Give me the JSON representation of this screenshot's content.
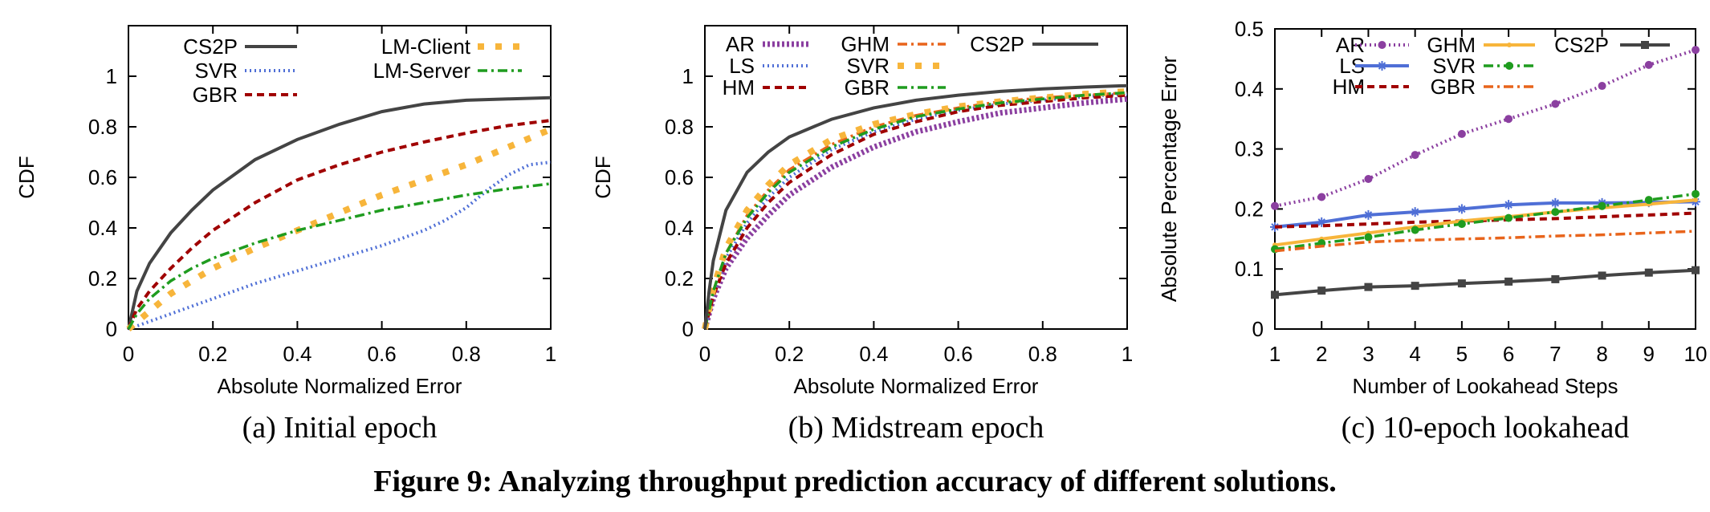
{
  "figure_caption": "Figure 9: Analyzing throughput prediction accuracy of different solutions.",
  "chart_data": [
    {
      "id": "a",
      "type": "line",
      "caption": "(a) Initial epoch",
      "xlabel": "Absolute Normalized Error",
      "ylabel": "CDF",
      "xlim": [
        0,
        1
      ],
      "ylim": [
        0,
        1.2
      ],
      "xticks": [
        "0",
        "0.2",
        "0.4",
        "0.6",
        "0.8",
        "1"
      ],
      "yticks": [
        "0",
        "0.2",
        "0.4",
        "0.6",
        "0.8",
        "1"
      ],
      "legend": {
        "placement": "top",
        "columns": 2
      },
      "series": [
        {
          "name": "CS2P",
          "color": "#444444",
          "style": "solid",
          "x": [
            0,
            0.02,
            0.05,
            0.1,
            0.15,
            0.2,
            0.3,
            0.4,
            0.5,
            0.6,
            0.7,
            0.8,
            0.9,
            1.0
          ],
          "y": [
            0,
            0.15,
            0.26,
            0.38,
            0.47,
            0.55,
            0.67,
            0.75,
            0.81,
            0.86,
            0.89,
            0.905,
            0.91,
            0.915
          ]
        },
        {
          "name": "SVR",
          "color": "#4f6fd6",
          "style": "dotted",
          "x": [
            0,
            0.1,
            0.2,
            0.3,
            0.4,
            0.5,
            0.6,
            0.7,
            0.75,
            0.8,
            0.85,
            0.9,
            0.95,
            1.0
          ],
          "y": [
            0,
            0.06,
            0.12,
            0.18,
            0.23,
            0.28,
            0.33,
            0.39,
            0.43,
            0.48,
            0.55,
            0.61,
            0.65,
            0.66
          ]
        },
        {
          "name": "GBR",
          "color": "#a00000",
          "style": "dashed",
          "x": [
            0,
            0.02,
            0.05,
            0.1,
            0.15,
            0.2,
            0.3,
            0.4,
            0.5,
            0.6,
            0.7,
            0.8,
            0.9,
            1.0
          ],
          "y": [
            0,
            0.08,
            0.15,
            0.24,
            0.32,
            0.39,
            0.5,
            0.59,
            0.65,
            0.7,
            0.74,
            0.775,
            0.805,
            0.825
          ]
        },
        {
          "name": "LM-Client",
          "color": "#f7b53b",
          "style": "thickdash",
          "x": [
            0,
            0.05,
            0.1,
            0.15,
            0.2,
            0.3,
            0.4,
            0.5,
            0.6,
            0.7,
            0.8,
            0.9,
            1.0
          ],
          "y": [
            0,
            0.07,
            0.14,
            0.19,
            0.24,
            0.32,
            0.39,
            0.46,
            0.53,
            0.59,
            0.65,
            0.72,
            0.79
          ]
        },
        {
          "name": "LM-Server",
          "color": "#1f9c1f",
          "style": "dashdot",
          "x": [
            0,
            0.02,
            0.05,
            0.1,
            0.15,
            0.2,
            0.3,
            0.4,
            0.5,
            0.6,
            0.7,
            0.8,
            0.9,
            1.0
          ],
          "y": [
            0,
            0.06,
            0.12,
            0.19,
            0.24,
            0.28,
            0.34,
            0.39,
            0.43,
            0.47,
            0.5,
            0.53,
            0.555,
            0.575
          ]
        }
      ]
    },
    {
      "id": "b",
      "type": "line",
      "caption": "(b) Midstream epoch",
      "xlabel": "Absolute Normalized Error",
      "ylabel": "CDF",
      "xlim": [
        0,
        1
      ],
      "ylim": [
        0,
        1.2
      ],
      "xticks": [
        "0",
        "0.2",
        "0.4",
        "0.6",
        "0.8",
        "1"
      ],
      "yticks": [
        "0",
        "0.2",
        "0.4",
        "0.6",
        "0.8",
        "1"
      ],
      "legend": {
        "placement": "top",
        "columns": 3
      },
      "series": [
        {
          "name": "AR",
          "color": "#8b3fa0",
          "style": "thickdot",
          "x": [
            0,
            0.02,
            0.05,
            0.1,
            0.15,
            0.2,
            0.3,
            0.4,
            0.5,
            0.6,
            0.7,
            0.8,
            0.9,
            1.0
          ],
          "y": [
            0,
            0.12,
            0.24,
            0.36,
            0.45,
            0.53,
            0.64,
            0.72,
            0.78,
            0.82,
            0.855,
            0.875,
            0.895,
            0.91
          ]
        },
        {
          "name": "LS",
          "color": "#4f6fd6",
          "style": "dotted",
          "x": [
            0,
            0.02,
            0.05,
            0.1,
            0.15,
            0.2,
            0.3,
            0.4,
            0.5,
            0.6,
            0.7,
            0.8,
            0.9,
            1.0
          ],
          "y": [
            0,
            0.14,
            0.28,
            0.42,
            0.52,
            0.6,
            0.71,
            0.78,
            0.83,
            0.865,
            0.89,
            0.905,
            0.92,
            0.93
          ]
        },
        {
          "name": "HM",
          "color": "#a00000",
          "style": "dashed",
          "x": [
            0,
            0.02,
            0.05,
            0.1,
            0.15,
            0.2,
            0.3,
            0.4,
            0.5,
            0.6,
            0.7,
            0.8,
            0.9,
            1.0
          ],
          "y": [
            0,
            0.13,
            0.26,
            0.4,
            0.5,
            0.58,
            0.69,
            0.77,
            0.82,
            0.86,
            0.885,
            0.9,
            0.915,
            0.925
          ]
        },
        {
          "name": "GHM",
          "color": "#e8641b",
          "style": "dashdot",
          "x": [
            0,
            0.02,
            0.05,
            0.1,
            0.15,
            0.2,
            0.3,
            0.4,
            0.5,
            0.6,
            0.7,
            0.8,
            0.9,
            1.0
          ],
          "y": [
            0,
            0.15,
            0.3,
            0.45,
            0.55,
            0.63,
            0.73,
            0.8,
            0.845,
            0.875,
            0.9,
            0.915,
            0.925,
            0.935
          ]
        },
        {
          "name": "SVR",
          "color": "#f7b53b",
          "style": "thickdash",
          "x": [
            0,
            0.02,
            0.05,
            0.1,
            0.15,
            0.2,
            0.3,
            0.4,
            0.5,
            0.6,
            0.7,
            0.8,
            0.9,
            1.0
          ],
          "y": [
            0,
            0.16,
            0.32,
            0.47,
            0.57,
            0.65,
            0.75,
            0.81,
            0.85,
            0.88,
            0.9,
            0.915,
            0.93,
            0.94
          ]
        },
        {
          "name": "GBR",
          "color": "#1f9c1f",
          "style": "dashdot",
          "x": [
            0,
            0.02,
            0.05,
            0.1,
            0.15,
            0.2,
            0.3,
            0.4,
            0.5,
            0.6,
            0.7,
            0.8,
            0.9,
            1.0
          ],
          "y": [
            0,
            0.15,
            0.3,
            0.44,
            0.54,
            0.62,
            0.72,
            0.79,
            0.84,
            0.87,
            0.895,
            0.91,
            0.925,
            0.935
          ]
        },
        {
          "name": "CS2P",
          "color": "#444444",
          "style": "solid",
          "x": [
            0,
            0.01,
            0.02,
            0.05,
            0.1,
            0.15,
            0.2,
            0.3,
            0.4,
            0.5,
            0.6,
            0.7,
            0.8,
            0.9,
            1.0
          ],
          "y": [
            0,
            0.15,
            0.27,
            0.47,
            0.62,
            0.7,
            0.76,
            0.83,
            0.875,
            0.905,
            0.925,
            0.94,
            0.95,
            0.957,
            0.963
          ]
        }
      ]
    },
    {
      "id": "c",
      "type": "line",
      "caption": "(c) 10-epoch lookahead",
      "xlabel": "Number of Lookahead Steps",
      "ylabel": "Absolute Percentage Error",
      "xlim": [
        1,
        10
      ],
      "ylim": [
        0,
        0.5
      ],
      "xticks": [
        "1",
        "2",
        "3",
        "4",
        "5",
        "6",
        "7",
        "8",
        "9",
        "10"
      ],
      "yticks": [
        "0",
        "0.1",
        "0.2",
        "0.3",
        "0.4",
        "0.5"
      ],
      "legend": {
        "placement": "top",
        "columns": 3
      },
      "series": [
        {
          "name": "AR",
          "color": "#8b3fa0",
          "style": "dotted",
          "marker": "circle",
          "x": [
            1,
            2,
            3,
            4,
            5,
            6,
            7,
            8,
            9,
            10
          ],
          "y": [
            0.205,
            0.22,
            0.25,
            0.29,
            0.325,
            0.35,
            0.375,
            0.405,
            0.44,
            0.465
          ]
        },
        {
          "name": "LS",
          "color": "#4f6fd6",
          "style": "solid",
          "marker": "star",
          "x": [
            1,
            2,
            3,
            4,
            5,
            6,
            7,
            8,
            9,
            10
          ],
          "y": [
            0.17,
            0.178,
            0.19,
            0.195,
            0.2,
            0.207,
            0.21,
            0.21,
            0.211,
            0.212
          ]
        },
        {
          "name": "HM",
          "color": "#a00000",
          "style": "dashed",
          "marker": "none",
          "x": [
            1,
            2,
            3,
            4,
            5,
            6,
            7,
            8,
            9,
            10
          ],
          "y": [
            0.17,
            0.172,
            0.175,
            0.178,
            0.18,
            0.182,
            0.184,
            0.187,
            0.19,
            0.193
          ]
        },
        {
          "name": "GHM",
          "color": "#f7b53b",
          "style": "solid",
          "marker": "point",
          "x": [
            1,
            2,
            3,
            4,
            5,
            6,
            7,
            8,
            9,
            10
          ],
          "y": [
            0.14,
            0.15,
            0.16,
            0.17,
            0.18,
            0.187,
            0.195,
            0.202,
            0.208,
            0.215
          ]
        },
        {
          "name": "SVR",
          "color": "#1f9c1f",
          "style": "dashdot",
          "marker": "circle",
          "x": [
            1,
            2,
            3,
            4,
            5,
            6,
            7,
            8,
            9,
            10
          ],
          "y": [
            0.133,
            0.143,
            0.153,
            0.165,
            0.175,
            0.185,
            0.195,
            0.205,
            0.215,
            0.225
          ]
        },
        {
          "name": "GBR",
          "color": "#e8641b",
          "style": "dashdot",
          "marker": "none",
          "x": [
            1,
            2,
            3,
            4,
            5,
            6,
            7,
            8,
            9,
            10
          ],
          "y": [
            0.13,
            0.138,
            0.145,
            0.148,
            0.15,
            0.152,
            0.155,
            0.157,
            0.16,
            0.163
          ]
        },
        {
          "name": "CS2P",
          "color": "#444444",
          "style": "solid",
          "marker": "square",
          "x": [
            1,
            2,
            3,
            4,
            5,
            6,
            7,
            8,
            9,
            10
          ],
          "y": [
            0.057,
            0.064,
            0.07,
            0.072,
            0.076,
            0.079,
            0.083,
            0.089,
            0.094,
            0.098
          ]
        }
      ]
    }
  ]
}
